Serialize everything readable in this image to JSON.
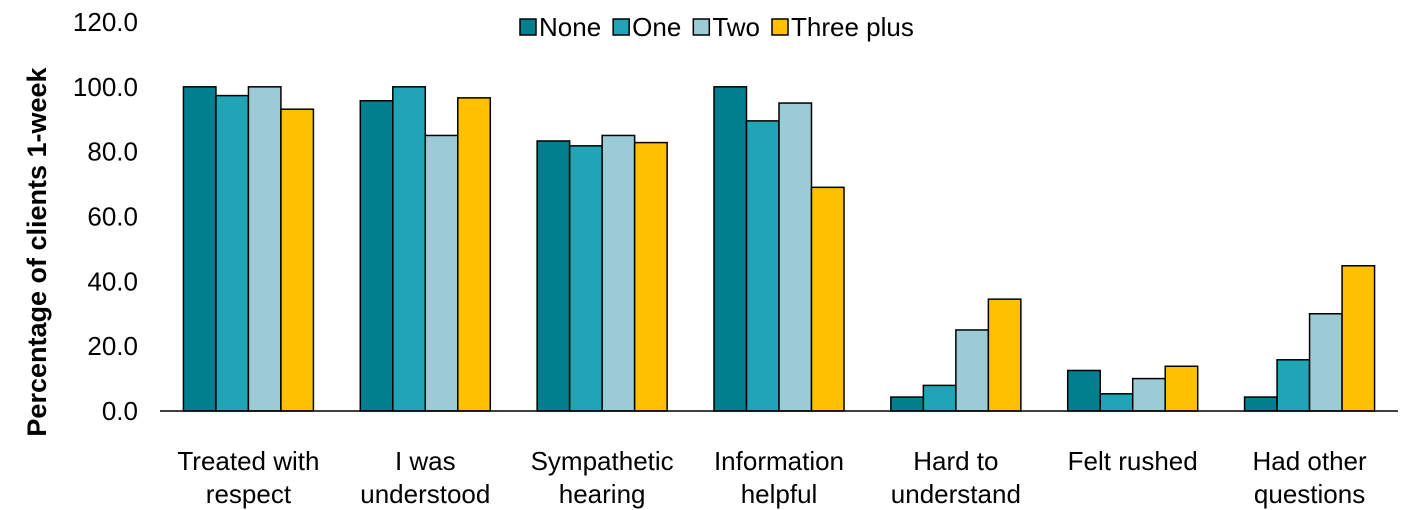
{
  "chart_data": {
    "type": "bar",
    "ylabel": "Percentage of clients 1-week",
    "ylim": [
      0,
      120
    ],
    "yticks": [
      "0.0",
      "20.0",
      "40.0",
      "60.0",
      "80.0",
      "100.0",
      "120.0"
    ],
    "grid": false,
    "legend_position": "top-center",
    "categories": [
      [
        "Treated with",
        "respect"
      ],
      [
        "I was",
        "understood"
      ],
      [
        "Sympathetic",
        "hearing"
      ],
      [
        "Information",
        "helpful"
      ],
      [
        "Hard to",
        "understand"
      ],
      [
        "Felt rushed",
        ""
      ],
      [
        "Had other",
        "questions"
      ]
    ],
    "series": [
      {
        "name": "None",
        "color": "#007f8f",
        "values": [
          100.0,
          95.7,
          83.3,
          100.0,
          4.3,
          12.5,
          4.3
        ]
      },
      {
        "name": "One",
        "color": "#1fa5b5",
        "values": [
          97.3,
          100.0,
          81.8,
          89.5,
          7.9,
          5.3,
          15.8
        ]
      },
      {
        "name": "Two",
        "color": "#9ccbd6",
        "values": [
          100.0,
          85.0,
          85.0,
          95.0,
          25.0,
          10.0,
          30.0
        ]
      },
      {
        "name": "Three plus",
        "color": "#ffc000",
        "values": [
          93.1,
          96.6,
          82.8,
          69.0,
          34.5,
          13.8,
          44.8
        ]
      }
    ]
  }
}
